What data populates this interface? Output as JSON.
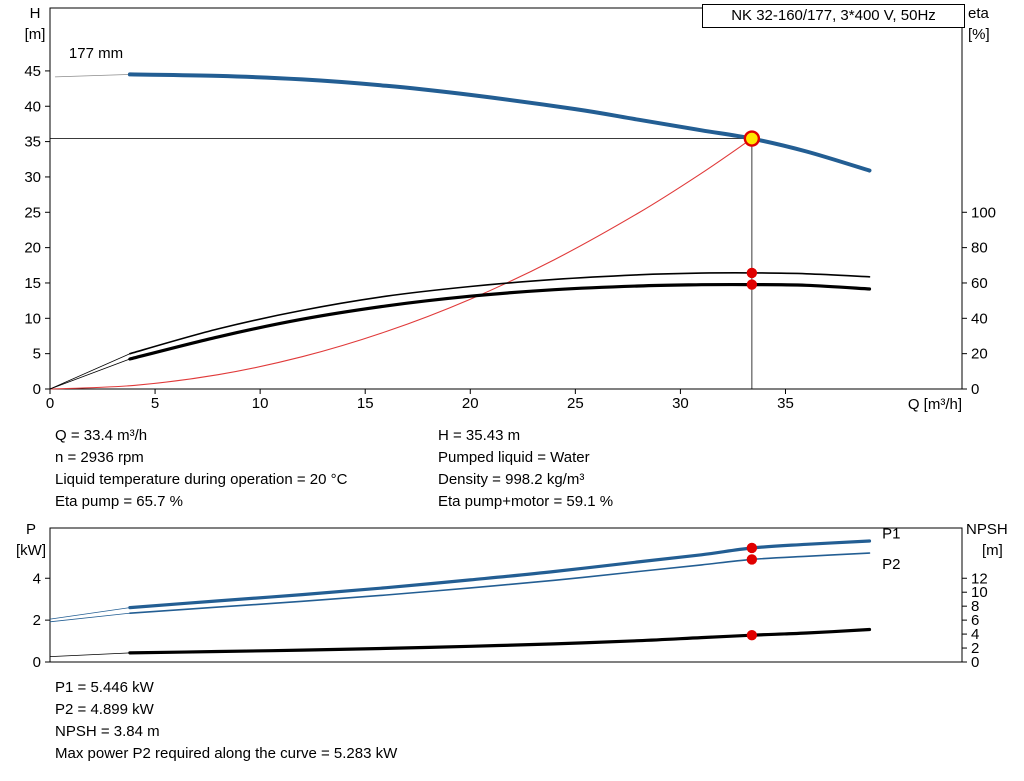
{
  "title_box": "NK 32-160/177, 3*400 V, 50Hz",
  "top_info": {
    "left": [
      "Q = 33.4 m³/h",
      "n = 2936 rpm",
      "Liquid temperature during operation = 20 °C",
      "Eta pump = 65.7 %"
    ],
    "right": [
      "H = 35.43 m",
      "Pumped liquid = Water",
      "Density = 998.2 kg/m³",
      "Eta pump+motor = 59.1 %"
    ]
  },
  "bottom_info": {
    "lines": [
      "P1 = 5.446 kW",
      "P2 = 4.899 kW",
      "NPSH = 3.84 m",
      "Max power P2 required along the curve = 5.283 kW"
    ]
  },
  "chart_data": [
    {
      "type": "line",
      "title": "NK 32-160/177, 3*400 V, 50Hz",
      "xlabel": "Q [m³/h]",
      "ylabel_left": "H [m]",
      "ylabel_left_lines": [
        "H",
        "[m]"
      ],
      "ylabel_right": "eta [%]",
      "ylabel_right_lines": [
        "eta",
        "[%]"
      ],
      "xlim": [
        0,
        43.4
      ],
      "ylim_left": [
        0,
        53.9
      ],
      "ylim_right": [
        0,
        215.6
      ],
      "x_ticks": [
        0,
        5,
        10,
        15,
        20,
        25,
        30,
        35
      ],
      "y_ticks_left": [
        0,
        5,
        10,
        15,
        20,
        25,
        30,
        35,
        40,
        45
      ],
      "y_ticks_right": [
        0,
        20,
        40,
        60,
        80,
        100
      ],
      "grid": false,
      "legend": "none",
      "duty_point": {
        "Q": 33.4,
        "H": 35.43,
        "eta_pump": 65.7,
        "eta_pump_motor": 59.1,
        "impeller": "177 mm"
      },
      "series": [
        {
          "name": "impeller-leader",
          "axis": "left",
          "color": "#8c8c8c",
          "width": 0.8,
          "x": [
            0.25,
            3.8
          ],
          "y": [
            44.15,
            44.5
          ]
        },
        {
          "name": "head-curve-177mm",
          "axis": "left",
          "color": "#235e93",
          "width": 4,
          "x": [
            3.8,
            8,
            12,
            16,
            20,
            25,
            28,
            31,
            33.4,
            36,
            39
          ],
          "y": [
            44.5,
            44.3,
            43.8,
            42.9,
            41.6,
            39.6,
            38.1,
            36.6,
            35.43,
            33.6,
            30.9
          ]
        },
        {
          "name": "system-curve",
          "axis": "left",
          "color": "#e03a3a",
          "width": 1.1,
          "x": [
            0,
            4,
            8,
            12,
            16,
            20,
            24,
            28,
            31,
            33.4
          ],
          "y": [
            0,
            0.51,
            2.03,
            4.57,
            8.13,
            12.7,
            18.29,
            24.9,
            30.52,
            35.43
          ]
        },
        {
          "name": "eta-pump-leader",
          "axis": "right",
          "color": "#000000",
          "width": 0.8,
          "x": [
            0,
            3.8
          ],
          "y": [
            0,
            20
          ]
        },
        {
          "name": "eta-pump-curve",
          "axis": "right",
          "color": "#000000",
          "width": 1.6,
          "x": [
            3.8,
            8,
            12,
            16,
            20,
            24,
            28,
            31,
            33.4,
            36,
            39
          ],
          "y": [
            20,
            34,
            44.5,
            52.5,
            58,
            62,
            64.6,
            65.6,
            65.7,
            65.2,
            63.5
          ]
        },
        {
          "name": "eta-pump-motor-leader",
          "axis": "right",
          "color": "#000000",
          "width": 0.8,
          "x": [
            0,
            3.8
          ],
          "y": [
            0,
            17
          ]
        },
        {
          "name": "eta-pump-motor-curve",
          "axis": "right",
          "color": "#000000",
          "width": 3.2,
          "x": [
            3.8,
            8,
            12,
            16,
            20,
            24,
            28,
            31,
            33.4,
            36,
            39
          ],
          "y": [
            17,
            29.5,
            39.5,
            47,
            52.5,
            56.2,
            58.3,
            59.0,
            59.1,
            58.7,
            56.6
          ]
        }
      ],
      "guides": [
        {
          "type": "v",
          "axis": "left",
          "x": 33.4,
          "y1": 0,
          "y2": 35.43,
          "color": "#3a3a3a",
          "width": 1
        },
        {
          "type": "h",
          "axis": "left",
          "y": 35.43,
          "x1": 0,
          "x2": 33.4,
          "color": "#3a3a3a",
          "width": 1
        }
      ],
      "markers": [
        {
          "name": "duty-point-marker",
          "axis": "left",
          "x": 33.4,
          "y": 35.43,
          "r": 7,
          "fill": "#ffe600",
          "stroke": "#e00000",
          "sw": 2.4
        },
        {
          "name": "eta-pump-marker",
          "axis": "right",
          "x": 33.4,
          "y": 65.7,
          "r": 5.2,
          "fill": "#e00000"
        },
        {
          "name": "eta-pump-motor-marker",
          "axis": "right",
          "x": 33.4,
          "y": 59.1,
          "r": 5.2,
          "fill": "#e00000"
        }
      ],
      "annotations": [
        {
          "text": "177 mm",
          "axis": "left",
          "x": 0.9,
          "y": 46.8,
          "color": "#000000"
        }
      ]
    },
    {
      "type": "line",
      "title": "",
      "xlabel": "",
      "ylabel_left": "P [kW]",
      "ylabel_left_lines": [
        "P",
        "[kW]"
      ],
      "ylabel_right": "NPSH [m]",
      "ylabel_right_lines": [
        "NPSH",
        "[m]"
      ],
      "xlim": [
        0,
        43.4
      ],
      "ylim_left": [
        0,
        6.4
      ],
      "ylim_right": [
        0,
        19.2
      ],
      "x_ticks": [],
      "y_ticks_left": [
        0,
        2,
        4
      ],
      "y_ticks_right": [
        0,
        2,
        4,
        6,
        8,
        10,
        12
      ],
      "grid": false,
      "legend": "inline",
      "duty_point": {
        "Q": 33.4,
        "P1": 5.446,
        "P2": 4.899,
        "NPSH": 3.84,
        "max_P2": 5.283
      },
      "series": [
        {
          "name": "p1-leader",
          "axis": "left",
          "color": "#235e93",
          "width": 0.8,
          "x": [
            0,
            3.8
          ],
          "y": [
            2.05,
            2.6
          ]
        },
        {
          "name": "p1-curve",
          "axis": "left",
          "color": "#235e93",
          "width": 3.2,
          "x": [
            3.8,
            8,
            12,
            16,
            20,
            24,
            28,
            31,
            33.4,
            36,
            39
          ],
          "y": [
            2.6,
            2.92,
            3.22,
            3.55,
            3.92,
            4.32,
            4.78,
            5.12,
            5.446,
            5.62,
            5.78
          ]
        },
        {
          "name": "p2-leader",
          "axis": "left",
          "color": "#235e93",
          "width": 0.8,
          "x": [
            0,
            3.8
          ],
          "y": [
            1.92,
            2.33
          ]
        },
        {
          "name": "p2-curve",
          "axis": "left",
          "color": "#235e93",
          "width": 1.6,
          "x": [
            3.8,
            8,
            12,
            16,
            20,
            24,
            28,
            31,
            33.4,
            36,
            39
          ],
          "y": [
            2.33,
            2.62,
            2.9,
            3.2,
            3.54,
            3.9,
            4.32,
            4.64,
            4.899,
            5.05,
            5.2
          ]
        },
        {
          "name": "npsh-leader",
          "axis": "right",
          "color": "#000000",
          "width": 0.8,
          "x": [
            0,
            3.8
          ],
          "y": [
            0.78,
            1.3
          ]
        },
        {
          "name": "npsh-curve",
          "axis": "right",
          "color": "#000000",
          "width": 3.2,
          "x": [
            3.8,
            8,
            12,
            16,
            20,
            24,
            28,
            31,
            33.4,
            36,
            39
          ],
          "y": [
            1.3,
            1.5,
            1.7,
            1.95,
            2.25,
            2.6,
            3.05,
            3.5,
            3.84,
            4.15,
            4.65
          ]
        }
      ],
      "guides": [],
      "markers": [
        {
          "name": "p1-marker",
          "axis": "left",
          "x": 33.4,
          "y": 5.446,
          "r": 5.2,
          "fill": "#e00000"
        },
        {
          "name": "p2-marker",
          "axis": "left",
          "x": 33.4,
          "y": 4.899,
          "r": 5.2,
          "fill": "#e00000"
        },
        {
          "name": "npsh-marker",
          "axis": "right",
          "x": 33.4,
          "y": 3.84,
          "r": 5.2,
          "fill": "#e00000"
        }
      ],
      "annotations": [
        {
          "text": "P1",
          "axis": "left",
          "x": 39.6,
          "y": 5.9,
          "color": "#235e93"
        },
        {
          "text": "P2",
          "axis": "left",
          "x": 39.6,
          "y": 4.45,
          "color": "#235e93"
        }
      ]
    }
  ]
}
